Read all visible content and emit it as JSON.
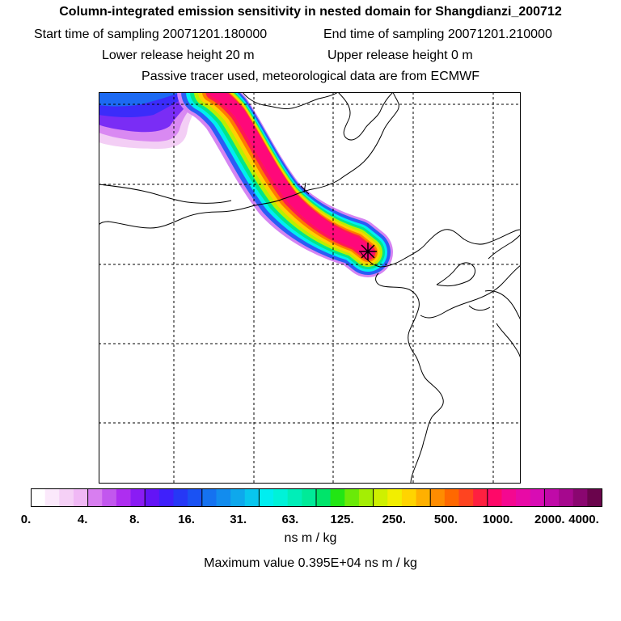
{
  "title": "Column-integrated emission sensitivity in nested domain for Shangdianzi_200712",
  "sampling": {
    "start_label": "Start time of sampling 20071201.180000",
    "end_label": "End time of sampling 20071201.210000"
  },
  "release": {
    "lower_label": "Lower release height   20 m",
    "upper_label": "Upper release height    0 m"
  },
  "tracer_note": "Passive tracer used, meteorological data are from ECMWF",
  "colorbar": {
    "ticks": [
      "0.",
      "4.",
      "8.",
      "16.",
      "31.",
      "63.",
      "125.",
      "250.",
      "500.",
      "1000.",
      "2000.",
      "4000."
    ],
    "colors": [
      "#ffffff",
      "#fbe9fb",
      "#f5d0f6",
      "#f0b8f5",
      "#d87ef0",
      "#c257ee",
      "#ae2ef0",
      "#8a1cf4",
      "#6314f6",
      "#3f20fb",
      "#2638f6",
      "#1a52f3",
      "#1572f0",
      "#128cee",
      "#0ea8ec",
      "#08c6ee",
      "#00eef0",
      "#00f2d8",
      "#00eeb8",
      "#00ea98",
      "#00e46a",
      "#22e614",
      "#6aea08",
      "#a4ee04",
      "#cef000",
      "#f2ee00",
      "#ffd400",
      "#ffb000",
      "#ff8c00",
      "#ff6800",
      "#ff4420",
      "#ff2040",
      "#ff0868",
      "#f40890",
      "#e80aa6",
      "#d80cb4",
      "#c00aa8",
      "#a6088e",
      "#8a0670",
      "#6a044c"
    ],
    "units": "ns m / kg"
  },
  "max_value_label": "Maximum value  0.395E+04 ns m / kg",
  "release_site_marker": "release-site-star"
}
